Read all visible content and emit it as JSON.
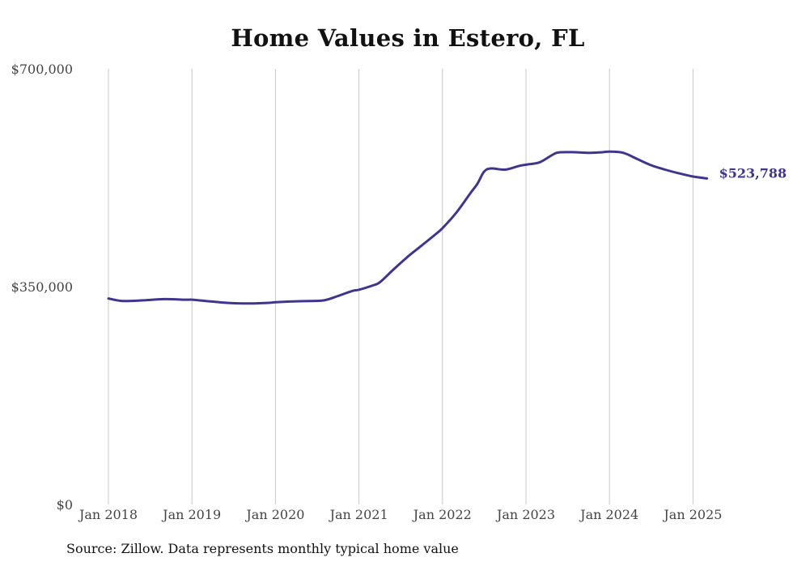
{
  "chart_data": {
    "type": "line",
    "title": "Home Values in Estero, FL",
    "xlabel": "",
    "ylabel": "",
    "ylim": [
      0,
      700000
    ],
    "y_ticks": [
      {
        "value": 0,
        "label": "$0"
      },
      {
        "value": 350000,
        "label": "$350,000"
      },
      {
        "value": 700000,
        "label": "$700,000"
      }
    ],
    "x_range": [
      "2018-01",
      "2025-03"
    ],
    "x_ticks": [
      {
        "date": "2018-01",
        "label": "Jan 2018"
      },
      {
        "date": "2019-01",
        "label": "Jan 2019"
      },
      {
        "date": "2020-01",
        "label": "Jan 2020"
      },
      {
        "date": "2021-01",
        "label": "Jan 2021"
      },
      {
        "date": "2022-01",
        "label": "Jan 2022"
      },
      {
        "date": "2023-01",
        "label": "Jan 2023"
      },
      {
        "date": "2024-01",
        "label": "Jan 2024"
      },
      {
        "date": "2025-01",
        "label": "Jan 2025"
      }
    ],
    "grid": {
      "vertical": true,
      "horizontal": false
    },
    "legend": "none",
    "series": [
      {
        "color": "#3f3590",
        "end_label": "$523,788",
        "x": [
          "2018-01",
          "2018-03",
          "2018-06",
          "2018-09",
          "2018-12",
          "2019-01",
          "2019-03",
          "2019-06",
          "2019-09",
          "2019-12",
          "2020-01",
          "2020-03",
          "2020-06",
          "2020-08",
          "2020-10",
          "2020-12",
          "2021-01",
          "2021-03",
          "2021-04",
          "2021-06",
          "2021-08",
          "2021-10",
          "2021-12",
          "2022-01",
          "2022-03",
          "2022-05",
          "2022-06",
          "2022-07",
          "2022-08",
          "2022-10",
          "2022-12",
          "2023-01",
          "2023-03",
          "2023-05",
          "2023-06",
          "2023-08",
          "2023-10",
          "2023-12",
          "2024-01",
          "2024-03",
          "2024-05",
          "2024-07",
          "2024-09",
          "2024-11",
          "2025-01",
          "2025-03"
        ],
        "values": [
          331000,
          327000,
          328000,
          330000,
          329000,
          329000,
          327000,
          324000,
          323000,
          324000,
          325000,
          326000,
          327000,
          328000,
          335000,
          343000,
          345000,
          352000,
          357000,
          378000,
          398000,
          416000,
          434000,
          444000,
          469000,
          500000,
          515000,
          535000,
          540000,
          538000,
          544000,
          546000,
          550000,
          563000,
          566000,
          566000,
          565000,
          566000,
          567000,
          565000,
          555000,
          545000,
          538000,
          532000,
          527000,
          523788
        ]
      }
    ]
  },
  "source": "Source: Zillow. Data represents monthly typical home value"
}
